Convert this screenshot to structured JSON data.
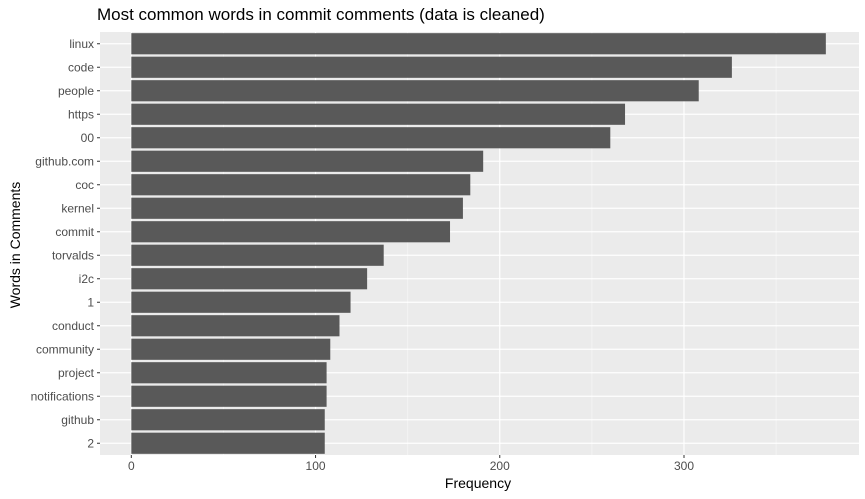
{
  "chart_data": {
    "type": "bar",
    "orientation": "horizontal",
    "title": "Most common words in commit comments (data is cleaned)",
    "xlabel": "Frequency",
    "ylabel": "Words in Comments",
    "categories": [
      "linux",
      "code",
      "people",
      "https",
      "00",
      "github.com",
      "coc",
      "kernel",
      "commit",
      "torvalds",
      "i2c",
      "1",
      "conduct",
      "community",
      "project",
      "notifications",
      "github",
      "2"
    ],
    "values": [
      377,
      326,
      308,
      268,
      260,
      191,
      184,
      180,
      173,
      137,
      128,
      119,
      113,
      108,
      106,
      106,
      105,
      105
    ],
    "xticks": [
      0,
      100,
      200,
      300
    ],
    "tick_labels": [
      "0",
      "100",
      "200",
      "300"
    ],
    "xlim": [
      -17,
      395
    ],
    "grid": true,
    "colors": {
      "bar": "#595959",
      "panel": "#ebebeb",
      "grid_major": "#ffffff",
      "grid_minor": "#f5f5f5"
    }
  }
}
